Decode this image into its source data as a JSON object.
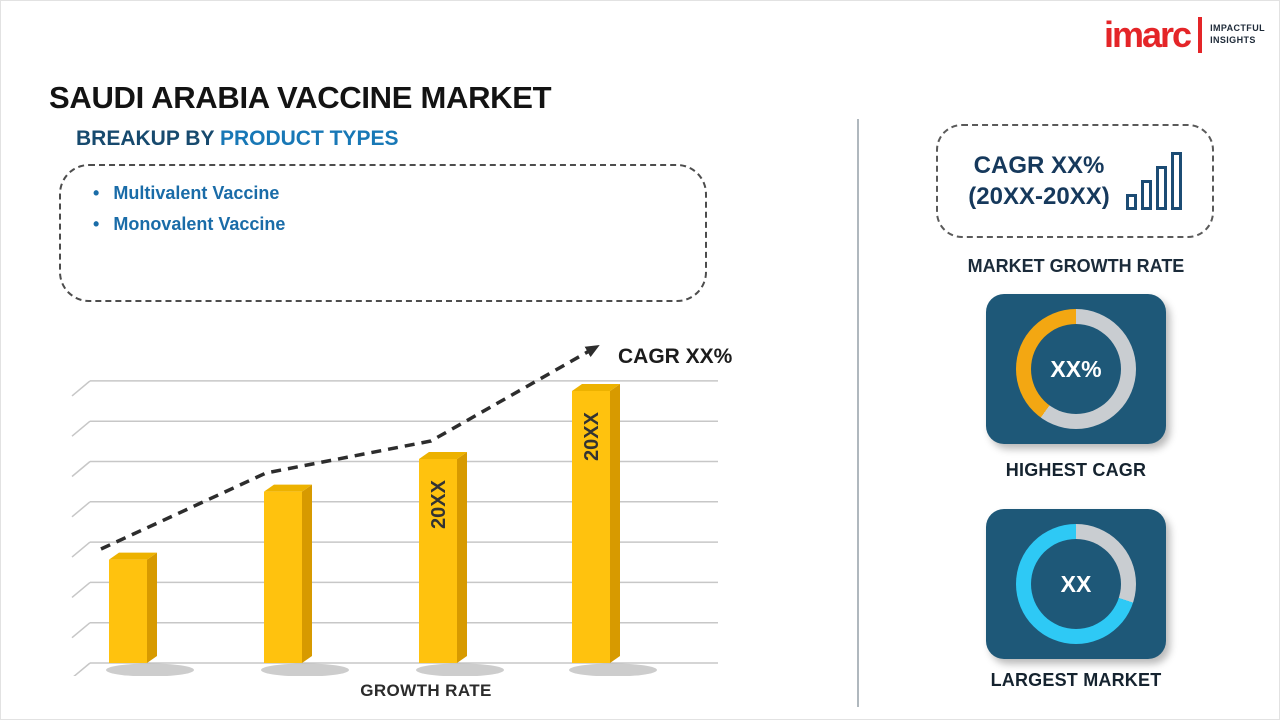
{
  "logo": {
    "brand": "imarc",
    "tagline_line1": "IMPACTFUL",
    "tagline_line2": "INSIGHTS"
  },
  "header": {
    "title": "SAUDI ARABIA VACCINE MARKET"
  },
  "breakup": {
    "heading_prefix": "BREAKUP BY",
    "heading_highlight": "PRODUCT TYPES",
    "bullet": "•",
    "items": [
      "Multivalent Vaccine",
      "Monovalent Vaccine"
    ]
  },
  "chart_data": {
    "type": "bar",
    "title": "",
    "categories": [
      "",
      "",
      "20XX",
      "20XX"
    ],
    "values": [
      38,
      63,
      75,
      100
    ],
    "xlabel": "GROWTH RATE",
    "ylabel": "",
    "ylim": [
      0,
      100
    ],
    "grid": true,
    "legend": false,
    "trend_label": "CAGR XX%",
    "bar_color": "#FFC20E",
    "bar_side_color": "#D79A00",
    "bar_top_color": "#EDB200"
  },
  "right_panel": {
    "cagr_card": {
      "line1": "CAGR XX%",
      "line2": "(20XX-20XX)"
    },
    "market_growth_label": "MARKET GROWTH RATE",
    "highest_cagr": {
      "value": "XX%",
      "label": "HIGHEST CAGR",
      "ring_percent": 40,
      "ring_color": "#F3A712"
    },
    "largest_market": {
      "value": "XX",
      "label": "LARGEST MARKET",
      "ring_percent": 70,
      "ring_color": "#2EC9F5"
    }
  },
  "colors": {
    "brand_red": "#E42528",
    "navy_tile": "#1E5878",
    "heading_navy": "#174A6E",
    "heading_blue": "#1878B6",
    "bullet_blue": "#1A6CA8",
    "ring_track": "#C9CDD1",
    "divider": "#B0B8BE"
  }
}
